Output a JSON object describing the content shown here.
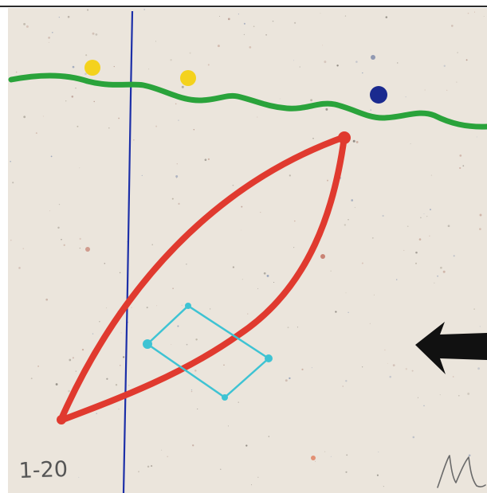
{
  "corner_note": "1-20",
  "signature_mark": "M",
  "colors": {
    "paper": "#ebe5dc",
    "frame_line": "#2c2c2c",
    "vertical_line": "#1c2fa8",
    "wavy_line": "#2aa33b",
    "yellow_dot": "#f4d21d",
    "navy_dot": "#1a2a8f",
    "red_shape": "#e03a2f",
    "cyan_shape": "#3ec3d3",
    "arrow": "#111111",
    "note_ink": "#555555"
  },
  "marks": [
    {
      "name": "vertical-line",
      "shape": "straight-line"
    },
    {
      "name": "wavy-line",
      "shape": "wavy-line"
    },
    {
      "name": "yellow-dot-1",
      "shape": "dot"
    },
    {
      "name": "yellow-dot-2",
      "shape": "dot"
    },
    {
      "name": "navy-dot",
      "shape": "dot"
    },
    {
      "name": "red-lens-shape",
      "shape": "lens"
    },
    {
      "name": "cyan-parallelogram",
      "shape": "parallelogram"
    },
    {
      "name": "black-arrow-left",
      "shape": "arrow"
    }
  ]
}
